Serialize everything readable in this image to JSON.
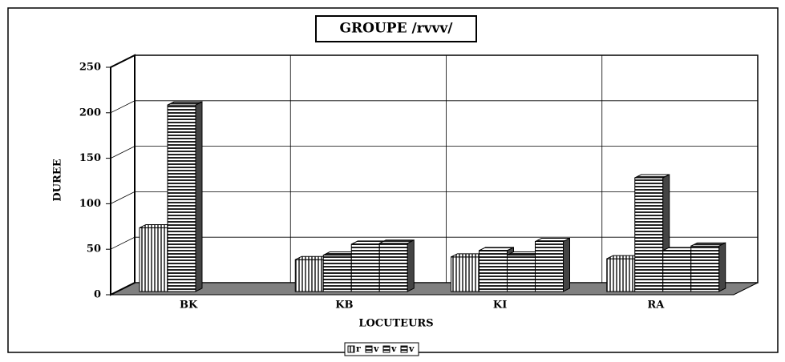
{
  "chart_data": {
    "type": "bar3d",
    "title": "GROUPE /rvvv/",
    "x_label": "LOCUTEURS",
    "y_label": "DUREE",
    "categories": [
      "BK",
      "KB",
      "KI",
      "RA"
    ],
    "series": [
      {
        "name": "r",
        "pattern": "vertical",
        "values": [
          70,
          35,
          38,
          36
        ]
      },
      {
        "name": "v",
        "pattern": "horizontal",
        "values": [
          205,
          40,
          45,
          125
        ]
      },
      {
        "name": "v",
        "pattern": "horizontal",
        "values": [
          null,
          52,
          40,
          45
        ]
      },
      {
        "name": "v",
        "pattern": "horizontal",
        "values": [
          null,
          53,
          55,
          50
        ]
      }
    ],
    "ylim": [
      0,
      250
    ],
    "yticks": [
      0,
      50,
      100,
      150,
      200,
      250
    ],
    "grid": true
  }
}
